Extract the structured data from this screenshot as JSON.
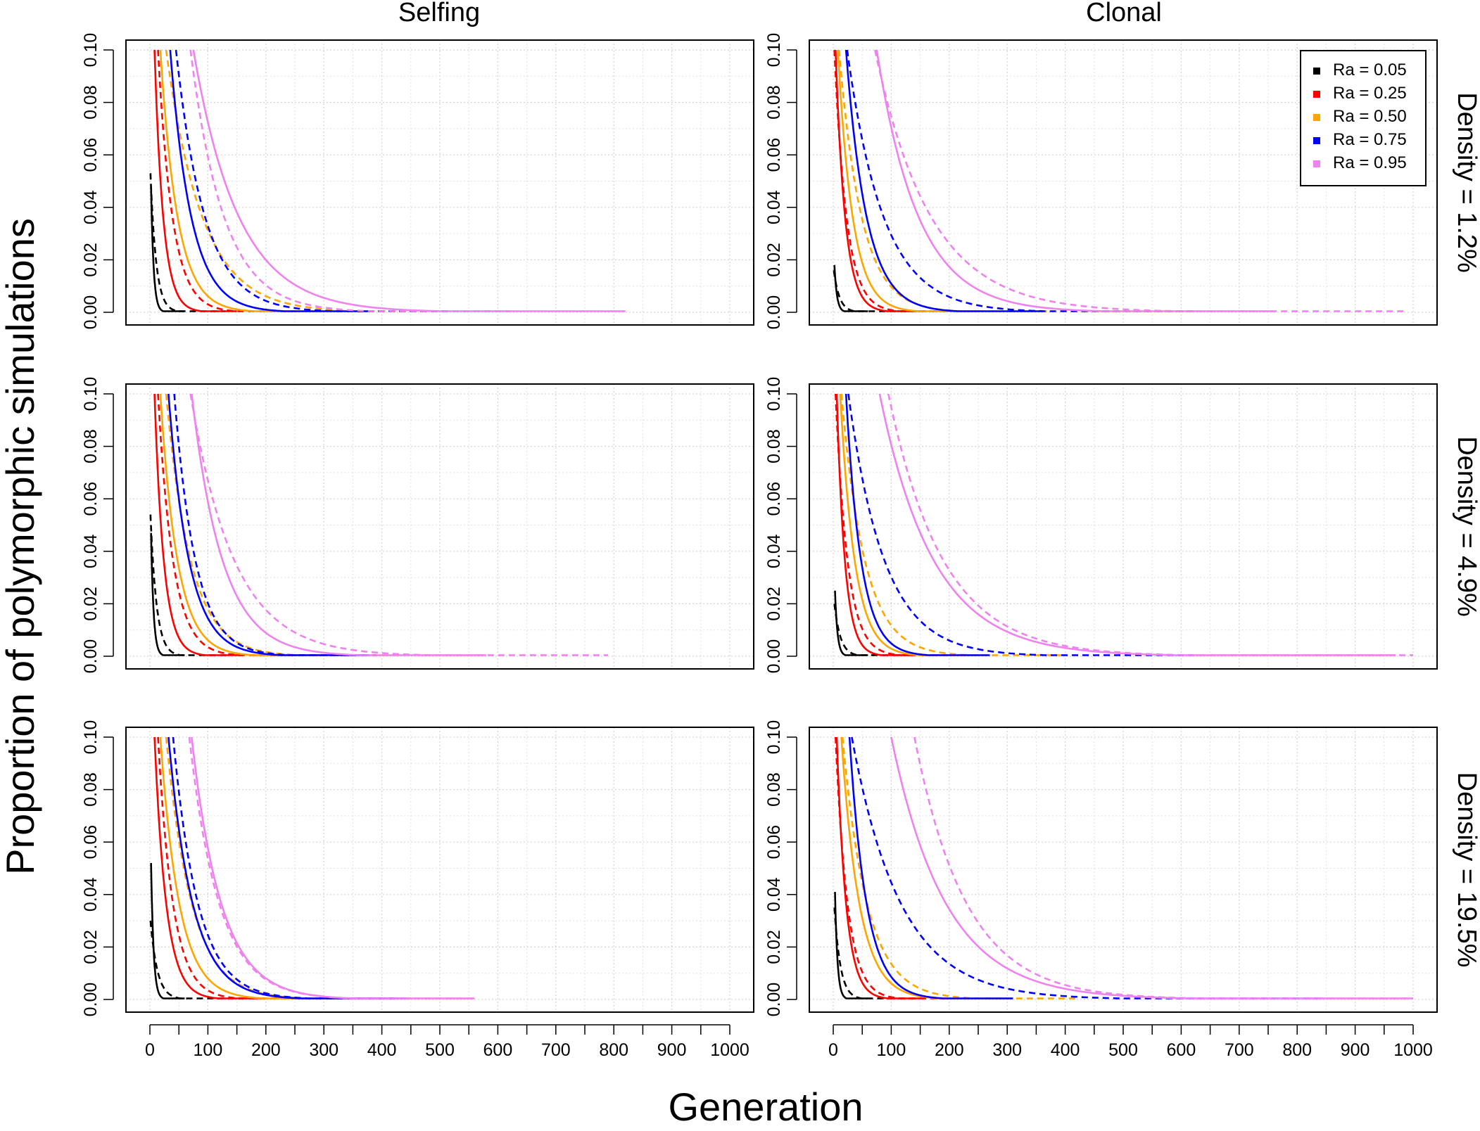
{
  "chart_data": {
    "type": "line",
    "xlabel": "Generation",
    "ylabel": "Proportion of polymorphic simulations",
    "xlim": [
      0,
      1000
    ],
    "ylim": [
      0,
      0.1
    ],
    "grid": true,
    "x_ticks": [
      0,
      100,
      200,
      300,
      400,
      500,
      600,
      700,
      800,
      900,
      1000
    ],
    "x_tick_labels": [
      "0",
      "100",
      "200",
      "300",
      "400",
      "500",
      "600",
      "700",
      "800",
      "900",
      "1000"
    ],
    "y_ticks": [
      0,
      0.02,
      0.04,
      0.06,
      0.08,
      0.1
    ],
    "y_tick_labels": [
      "0.00",
      "0.02",
      "0.04",
      "0.06",
      "0.08",
      "0.10"
    ],
    "columns": [
      "Selfing",
      "Clonal"
    ],
    "rows": [
      "Density = 1.2%",
      "Density = 4.9%",
      "Density = 19.5%"
    ],
    "line_styles": {
      "solid": "first line type",
      "dashed": "second line type"
    },
    "legend": {
      "placement": "top-right of the Clonal / Density = 1.2% panel",
      "entries": [
        {
          "label": "Ra = 0.05",
          "color": "#000000"
        },
        {
          "label": "Ra = 0.25",
          "color": "#ff0000"
        },
        {
          "label": "Ra = 0.50",
          "color": "#ffa500"
        },
        {
          "label": "Ra = 0.75",
          "color": "#0000ff"
        },
        {
          "label": "Ra = 0.95",
          "color": "#ee82ee"
        }
      ]
    },
    "panels": [
      {
        "column": "Selfing",
        "row": "Density = 1.2%",
        "curves": [
          {
            "ra": "Ra = 0.05",
            "solid": {
              "start": 2,
              "end": 60,
              "y0": 0.048
            },
            "dashed": {
              "start": 1,
              "end": 130,
              "y0": 0.053
            }
          },
          {
            "ra": "Ra = 0.25",
            "solid": {
              "start": 8,
              "end": 150,
              "y0": 0.1
            },
            "dashed": {
              "start": 14,
              "end": 250,
              "y0": 0.1
            }
          },
          {
            "ra": "Ra = 0.50",
            "solid": {
              "start": 18,
              "end": 300,
              "y0": 0.1
            },
            "dashed": {
              "start": 28,
              "end": 620,
              "y0": 0.1
            }
          },
          {
            "ra": "Ra = 0.75",
            "solid": {
              "start": 35,
              "end": 380,
              "y0": 0.1
            },
            "dashed": {
              "start": 45,
              "end": 520,
              "y0": 0.1
            }
          },
          {
            "ra": "Ra = 0.95",
            "solid": {
              "start": 75,
              "end": 820,
              "y0": 0.1
            },
            "dashed": {
              "start": 70,
              "end": 620,
              "y0": 0.1
            }
          }
        ]
      },
      {
        "column": "Clonal",
        "row": "Density = 1.2%",
        "curves": [
          {
            "ra": "Ra = 0.05",
            "solid": {
              "start": 2,
              "end": 60,
              "y0": 0.018
            },
            "dashed": {
              "start": 1,
              "end": 130,
              "y0": 0.016
            }
          },
          {
            "ra": "Ra = 0.25",
            "solid": {
              "start": 4,
              "end": 160,
              "y0": 0.1
            },
            "dashed": {
              "start": 2,
              "end": 200,
              "y0": 0.1
            }
          },
          {
            "ra": "Ra = 0.50",
            "solid": {
              "start": 8,
              "end": 250,
              "y0": 0.1
            },
            "dashed": {
              "start": 10,
              "end": 380,
              "y0": 0.1
            }
          },
          {
            "ra": "Ra = 0.75",
            "solid": {
              "start": 22,
              "end": 360,
              "y0": 0.1
            },
            "dashed": {
              "start": 24,
              "end": 620,
              "y0": 0.1
            }
          },
          {
            "ra": "Ra = 0.95",
            "solid": {
              "start": 75,
              "end": 760,
              "y0": 0.1
            },
            "dashed": {
              "start": 72,
              "end": 990,
              "y0": 0.1
            }
          }
        ]
      },
      {
        "column": "Selfing",
        "row": "Density = 4.9%",
        "curves": [
          {
            "ra": "Ra = 0.05",
            "solid": {
              "start": 2,
              "end": 60,
              "y0": 0.047
            },
            "dashed": {
              "start": 1,
              "end": 140,
              "y0": 0.054
            }
          },
          {
            "ra": "Ra = 0.25",
            "solid": {
              "start": 8,
              "end": 160,
              "y0": 0.1
            },
            "dashed": {
              "start": 14,
              "end": 260,
              "y0": 0.1
            }
          },
          {
            "ra": "Ra = 0.50",
            "solid": {
              "start": 18,
              "end": 300,
              "y0": 0.1
            },
            "dashed": {
              "start": 28,
              "end": 430,
              "y0": 0.1
            }
          },
          {
            "ra": "Ra = 0.75",
            "solid": {
              "start": 32,
              "end": 370,
              "y0": 0.1
            },
            "dashed": {
              "start": 42,
              "end": 390,
              "y0": 0.1
            }
          },
          {
            "ra": "Ra = 0.95",
            "solid": {
              "start": 72,
              "end": 580,
              "y0": 0.1
            },
            "dashed": {
              "start": 70,
              "end": 790,
              "y0": 0.1
            }
          }
        ]
      },
      {
        "column": "Clonal",
        "row": "Density = 4.9%",
        "curves": [
          {
            "ra": "Ra = 0.05",
            "solid": {
              "start": 3,
              "end": 60,
              "y0": 0.025
            },
            "dashed": {
              "start": 2,
              "end": 140,
              "y0": 0.02
            }
          },
          {
            "ra": "Ra = 0.25",
            "solid": {
              "start": 6,
              "end": 140,
              "y0": 0.1
            },
            "dashed": {
              "start": 4,
              "end": 200,
              "y0": 0.1
            }
          },
          {
            "ra": "Ra = 0.50",
            "solid": {
              "start": 12,
              "end": 250,
              "y0": 0.1
            },
            "dashed": {
              "start": 14,
              "end": 400,
              "y0": 0.1
            }
          },
          {
            "ra": "Ra = 0.75",
            "solid": {
              "start": 22,
              "end": 270,
              "y0": 0.1
            },
            "dashed": {
              "start": 26,
              "end": 620,
              "y0": 0.1
            }
          },
          {
            "ra": "Ra = 0.95",
            "solid": {
              "start": 80,
              "end": 970,
              "y0": 0.1
            },
            "dashed": {
              "start": 95,
              "end": 1000,
              "y0": 0.1
            }
          }
        ]
      },
      {
        "column": "Selfing",
        "row": "Density = 19.5%",
        "curves": [
          {
            "ra": "Ra = 0.05",
            "solid": {
              "start": 2,
              "end": 60,
              "y0": 0.052
            },
            "dashed": {
              "start": 1,
              "end": 160,
              "y0": 0.03
            }
          },
          {
            "ra": "Ra = 0.25",
            "solid": {
              "start": 8,
              "end": 200,
              "y0": 0.1
            },
            "dashed": {
              "start": 14,
              "end": 260,
              "y0": 0.1
            }
          },
          {
            "ra": "Ra = 0.50",
            "solid": {
              "start": 18,
              "end": 330,
              "y0": 0.1
            },
            "dashed": {
              "start": 28,
              "end": 450,
              "y0": 0.1
            }
          },
          {
            "ra": "Ra = 0.75",
            "solid": {
              "start": 32,
              "end": 430,
              "y0": 0.1
            },
            "dashed": {
              "start": 40,
              "end": 450,
              "y0": 0.1
            }
          },
          {
            "ra": "Ra = 0.95",
            "solid": {
              "start": 72,
              "end": 560,
              "y0": 0.1
            },
            "dashed": {
              "start": 68,
              "end": 560,
              "y0": 0.1
            }
          }
        ]
      },
      {
        "column": "Clonal",
        "row": "Density = 19.5%",
        "curves": [
          {
            "ra": "Ra = 0.05",
            "solid": {
              "start": 3,
              "end": 60,
              "y0": 0.041
            },
            "dashed": {
              "start": 2,
              "end": 140,
              "y0": 0.035
            }
          },
          {
            "ra": "Ra = 0.25",
            "solid": {
              "start": 6,
              "end": 160,
              "y0": 0.1
            },
            "dashed": {
              "start": 4,
              "end": 200,
              "y0": 0.1
            }
          },
          {
            "ra": "Ra = 0.50",
            "solid": {
              "start": 14,
              "end": 310,
              "y0": 0.1
            },
            "dashed": {
              "start": 16,
              "end": 420,
              "y0": 0.1
            }
          },
          {
            "ra": "Ra = 0.75",
            "solid": {
              "start": 28,
              "end": 310,
              "y0": 0.1
            },
            "dashed": {
              "start": 32,
              "end": 840,
              "y0": 0.1
            }
          },
          {
            "ra": "Ra = 0.95",
            "solid": {
              "start": 100,
              "end": 1000,
              "y0": 0.1
            },
            "dashed": {
              "start": 140,
              "end": 1000,
              "y0": 0.1
            }
          }
        ]
      }
    ]
  }
}
